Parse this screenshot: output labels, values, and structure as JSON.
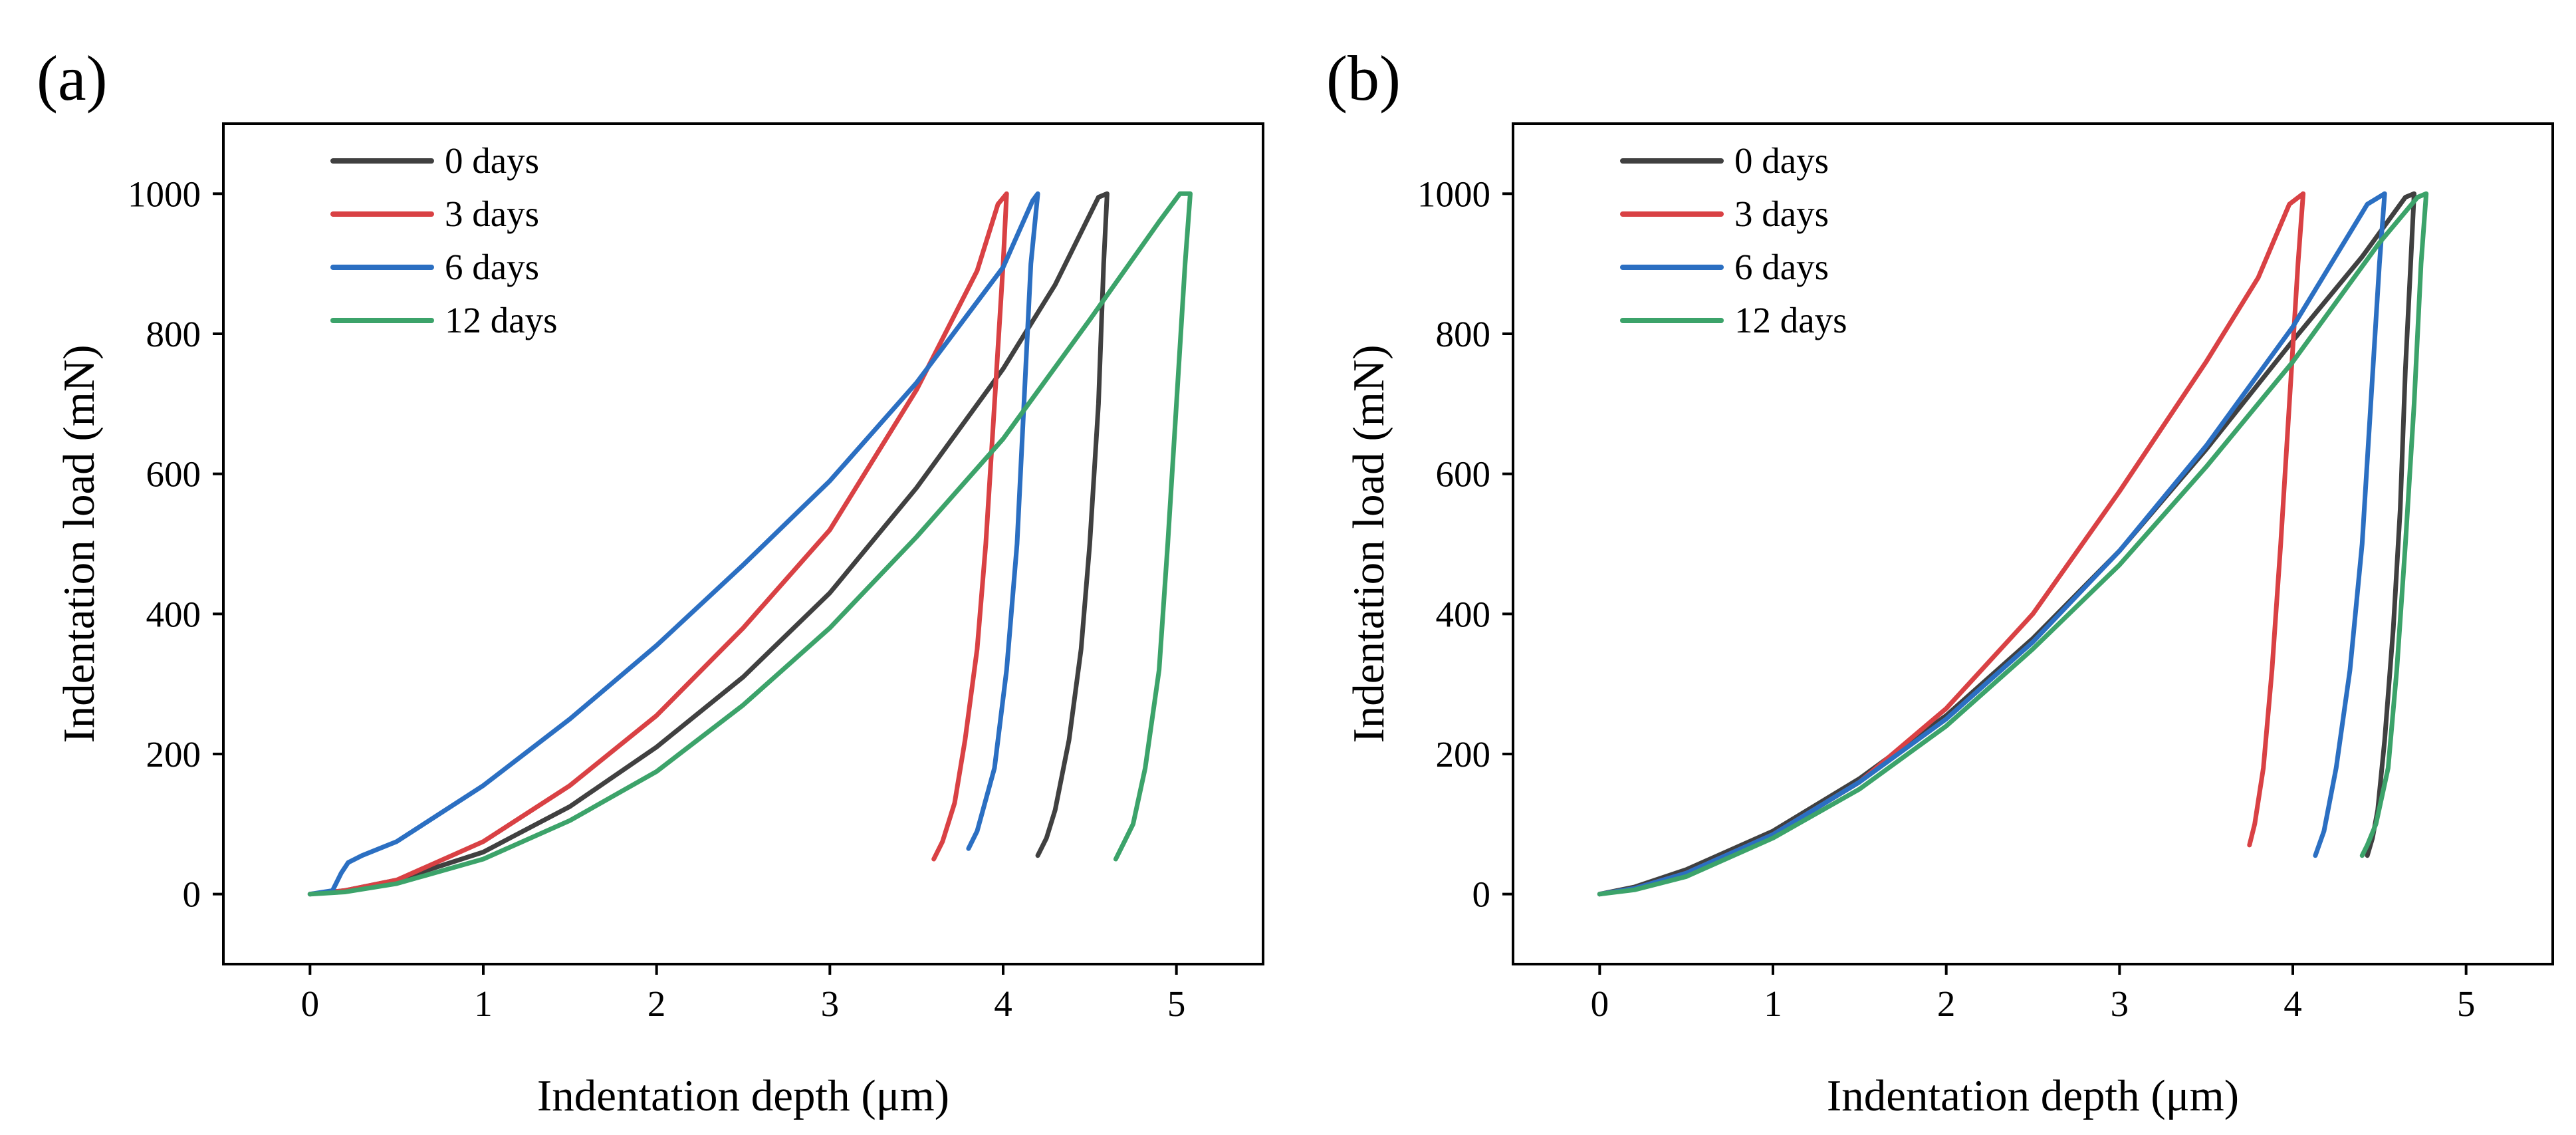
{
  "chart_data": [
    {
      "type": "line",
      "panel_label": "(a)",
      "xlabel": "Indentation depth (μm)",
      "ylabel": "Indentation load (mN)",
      "xlim": [
        -0.5,
        5.5
      ],
      "ylim": [
        -100,
        1100
      ],
      "xticks": [
        0,
        1,
        2,
        3,
        4,
        5
      ],
      "yticks": [
        0,
        200,
        400,
        600,
        800,
        1000
      ],
      "legend_position": "top-left",
      "series": [
        {
          "name": "0 days",
          "color": "#404040",
          "x": [
            0,
            0.2,
            0.5,
            1.0,
            1.5,
            2.0,
            2.5,
            3.0,
            3.5,
            4.0,
            4.3,
            4.55,
            4.6,
            4.6,
            4.58,
            4.55,
            4.5,
            4.45,
            4.38,
            4.3,
            4.25,
            4.2
          ],
          "y": [
            0,
            5,
            20,
            60,
            125,
            210,
            310,
            430,
            580,
            750,
            870,
            995,
            1000,
            1000,
            900,
            700,
            500,
            350,
            220,
            120,
            80,
            55
          ]
        },
        {
          "name": "3 days",
          "color": "#d94144",
          "x": [
            0,
            0.2,
            0.5,
            1.0,
            1.5,
            2.0,
            2.5,
            3.0,
            3.5,
            3.85,
            3.97,
            4.02,
            4.02,
            4.0,
            3.95,
            3.9,
            3.85,
            3.78,
            3.72,
            3.65,
            3.6
          ],
          "y": [
            0,
            5,
            20,
            75,
            155,
            255,
            380,
            520,
            720,
            890,
            985,
            1000,
            1000,
            900,
            700,
            500,
            350,
            220,
            130,
            75,
            50
          ]
        },
        {
          "name": "6 days",
          "color": "#2b6fc2",
          "x": [
            0,
            0.13,
            0.18,
            0.22,
            0.3,
            0.5,
            1.0,
            1.5,
            2.0,
            2.5,
            3.0,
            3.5,
            4.0,
            4.17,
            4.2,
            4.2,
            4.16,
            4.12,
            4.08,
            4.02,
            3.95,
            3.85,
            3.8
          ],
          "y": [
            0,
            5,
            30,
            45,
            55,
            75,
            155,
            250,
            355,
            470,
            590,
            730,
            895,
            990,
            1000,
            1000,
            900,
            700,
            500,
            320,
            180,
            90,
            65
          ]
        },
        {
          "name": "12 days",
          "color": "#3ca36a",
          "x": [
            0,
            0.2,
            0.5,
            1.0,
            1.5,
            2.0,
            2.5,
            3.0,
            3.5,
            4.0,
            4.5,
            4.9,
            5.02,
            5.08,
            5.08,
            5.05,
            5.0,
            4.95,
            4.9,
            4.82,
            4.75,
            4.7,
            4.65
          ],
          "y": [
            0,
            3,
            15,
            50,
            105,
            175,
            270,
            380,
            510,
            650,
            820,
            960,
            1000,
            1000,
            1000,
            900,
            700,
            500,
            320,
            180,
            100,
            75,
            50
          ]
        }
      ]
    },
    {
      "type": "line",
      "panel_label": "(b)",
      "xlabel": "Indentation depth (μm)",
      "ylabel": "Indentation load (mN)",
      "xlim": [
        -0.5,
        5.5
      ],
      "ylim": [
        -100,
        1100
      ],
      "xticks": [
        0,
        1,
        2,
        3,
        4,
        5
      ],
      "yticks": [
        0,
        200,
        400,
        600,
        800,
        1000
      ],
      "legend_position": "top-left",
      "series": [
        {
          "name": "0 days",
          "color": "#404040",
          "x": [
            0,
            0.2,
            0.5,
            1.0,
            1.5,
            2.0,
            2.5,
            3.0,
            3.5,
            4.0,
            4.4,
            4.65,
            4.7,
            4.7,
            4.68,
            4.65,
            4.62,
            4.58,
            4.53,
            4.49,
            4.46,
            4.43
          ],
          "y": [
            0,
            10,
            35,
            90,
            165,
            255,
            365,
            490,
            635,
            790,
            910,
            995,
            1000,
            1000,
            900,
            750,
            550,
            380,
            220,
            120,
            80,
            55
          ]
        },
        {
          "name": "3 days",
          "color": "#d94144",
          "x": [
            0,
            0.2,
            0.5,
            1.0,
            1.5,
            2.0,
            2.5,
            3.0,
            3.5,
            3.8,
            3.98,
            4.06,
            4.06,
            4.03,
            3.98,
            3.93,
            3.88,
            3.83,
            3.78,
            3.75
          ],
          "y": [
            0,
            8,
            30,
            85,
            160,
            265,
            400,
            575,
            760,
            880,
            985,
            1000,
            1000,
            900,
            700,
            500,
            320,
            180,
            100,
            70
          ]
        },
        {
          "name": "6 days",
          "color": "#2b6fc2",
          "x": [
            0,
            0.2,
            0.5,
            1.0,
            1.5,
            2.0,
            2.5,
            3.0,
            3.5,
            4.0,
            4.43,
            4.53,
            4.53,
            4.5,
            4.45,
            4.4,
            4.33,
            4.25,
            4.18,
            4.13
          ],
          "y": [
            0,
            8,
            30,
            85,
            160,
            250,
            360,
            490,
            640,
            810,
            985,
            1000,
            1000,
            900,
            700,
            500,
            320,
            180,
            90,
            55
          ]
        },
        {
          "name": "12 days",
          "color": "#3ca36a",
          "x": [
            0,
            0.2,
            0.5,
            1.0,
            1.5,
            2.0,
            2.5,
            3.0,
            3.5,
            4.0,
            4.5,
            4.72,
            4.77,
            4.77,
            4.74,
            4.7,
            4.65,
            4.6,
            4.55,
            4.48,
            4.43,
            4.4
          ],
          "y": [
            0,
            6,
            25,
            80,
            150,
            240,
            350,
            470,
            610,
            760,
            930,
            995,
            1000,
            1000,
            900,
            700,
            500,
            320,
            180,
            100,
            70,
            55
          ]
        }
      ]
    }
  ]
}
